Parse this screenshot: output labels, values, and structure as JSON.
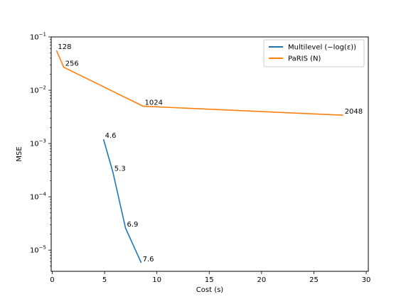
{
  "chart_data": {
    "type": "line",
    "xlabel": "Cost (s)",
    "ylabel": "MSE",
    "xlim": [
      -0.1,
      30.2
    ],
    "ylim": [
      4e-06,
      0.1
    ],
    "yscale": "log",
    "x_ticks": [
      0,
      5,
      10,
      15,
      20,
      25,
      30
    ],
    "x_tick_labels": [
      "0",
      "5",
      "10",
      "15",
      "20",
      "25",
      "30"
    ],
    "y_ticks": [
      1e-05,
      0.0001,
      0.001,
      0.01,
      0.1
    ],
    "y_tick_labels": [
      {
        "base": "10",
        "exp": "−5"
      },
      {
        "base": "10",
        "exp": "−4"
      },
      {
        "base": "10",
        "exp": "−3"
      },
      {
        "base": "10",
        "exp": "−2"
      },
      {
        "base": "10",
        "exp": "−1"
      }
    ],
    "grid": false,
    "legend_position": "top-right",
    "series": [
      {
        "name": "Multilevel (−log(ε))",
        "color": "#1f77b4",
        "x": [
          4.9,
          5.8,
          7.0,
          8.5
        ],
        "y": [
          0.0012,
          0.00029,
          2.6e-05,
          5.8e-06
        ],
        "labels": [
          "4.6",
          "5.3",
          "6.9",
          "7.6"
        ]
      },
      {
        "name": "PaRIS (N)",
        "color": "#ff7f0e",
        "x": [
          0.4,
          1.1,
          8.7,
          27.8
        ],
        "y": [
          0.056,
          0.027,
          0.005,
          0.0034
        ],
        "labels": [
          "128",
          "256",
          "1024",
          "2048"
        ]
      }
    ]
  }
}
